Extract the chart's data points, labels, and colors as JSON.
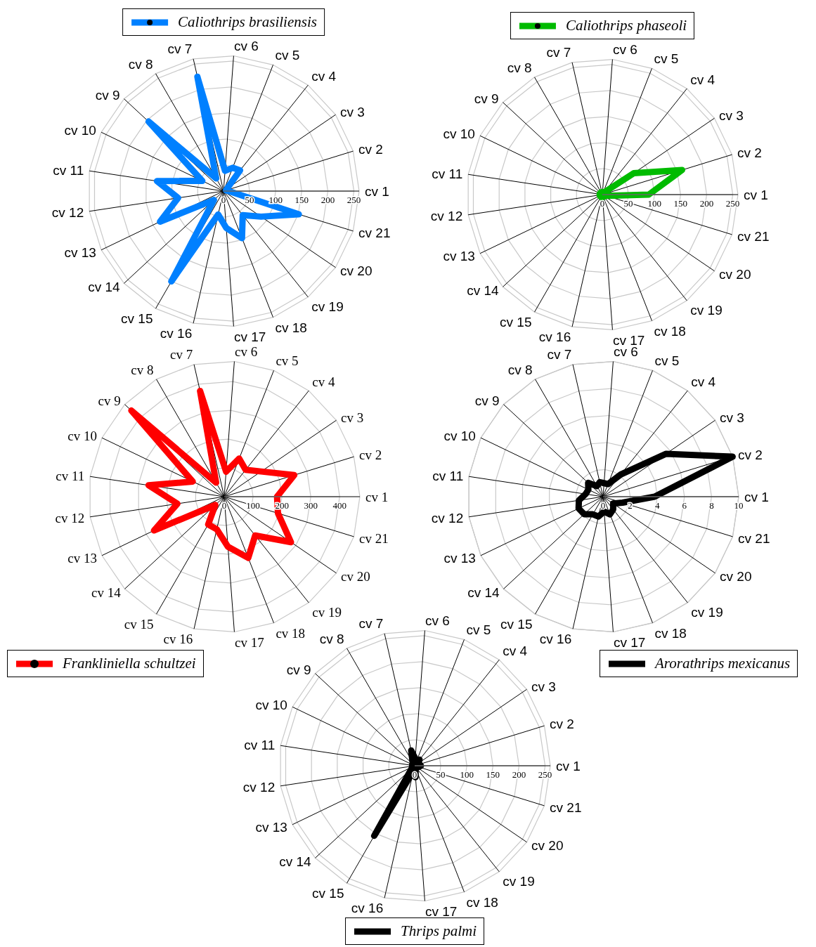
{
  "chart_data": [
    {
      "type": "radar",
      "categories": [
        "cv 6",
        "cv 5",
        "cv 4",
        "cv 3",
        "cv 2",
        "cv 1",
        "cv 21",
        "cv 20",
        "cv 19",
        "cv 18",
        "cv 17",
        "cv 16",
        "cv 15",
        "cv 14",
        "cv 13",
        "cv 12",
        "cv 11",
        "cv 10",
        "cv 9",
        "cv 8",
        "cv 7"
      ],
      "ylim": [
        0,
        260
      ],
      "yticks": [
        0,
        50,
        100,
        150,
        200,
        250
      ],
      "grid": true,
      "legend": "top",
      "marker": "circle",
      "series": [
        {
          "name": "Caliothrips brasiliensis",
          "color": "#0080ff",
          "values": [
            39,
            48,
            51,
            8,
            5,
            10,
            151,
            87,
            59,
            97,
            71,
            46,
            200,
            25,
            135,
            88,
            129,
            45,
            196,
            28,
            225
          ]
        }
      ]
    },
    {
      "type": "radar",
      "categories": [
        "cv 6",
        "cv 5",
        "cv 4",
        "cv 3",
        "cv 2",
        "cv 1",
        "cv 21",
        "cv 20",
        "cv 19",
        "cv 18",
        "cv 17",
        "cv 16",
        "cv 15",
        "cv 14",
        "cv 13",
        "cv 12",
        "cv 11",
        "cv 10",
        "cv 9",
        "cv 8",
        "cv 7"
      ],
      "ylim": [
        0,
        260
      ],
      "yticks": [
        0,
        50,
        100,
        150,
        200,
        250
      ],
      "grid": true,
      "legend": "top",
      "marker": "circle",
      "series": [
        {
          "name": "Caliothrips phaseoli",
          "color": "#00bb00",
          "values": [
            5,
            5,
            5,
            73,
            160,
            89,
            8,
            5,
            5,
            5,
            5,
            5,
            5,
            5,
            5,
            5,
            5,
            5,
            5,
            5,
            5
          ]
        }
      ]
    },
    {
      "type": "radar",
      "categories": [
        "cv 6",
        "cv 5",
        "cv 4",
        "cv 3",
        "cv 2",
        "cv 1",
        "cv 21",
        "cv 20",
        "cv 19",
        "cv 18",
        "cv 17",
        "cv 16",
        "cv 15",
        "cv 14",
        "cv 13",
        "cv 12",
        "cv 11",
        "cv 10",
        "cv 9",
        "cv 8",
        "cv 7"
      ],
      "ylim": [
        0,
        470
      ],
      "yticks": [
        0,
        100,
        200,
        300,
        400
      ],
      "grid": true,
      "legend": "bottom left",
      "marker": "circle",
      "series": [
        {
          "name": "Frankliniella schultzei",
          "color": "#ff0000",
          "values": [
            87,
            142,
            119,
            155,
            254,
            183,
            195,
            280,
            172,
            228,
            174,
            116,
            111,
            42,
            270,
            164,
            265,
            121,
            439,
            56,
            376
          ]
        }
      ]
    },
    {
      "type": "radar",
      "categories": [
        "cv 6",
        "cv 5",
        "cv 4",
        "cv 3",
        "cv 2",
        "cv 1",
        "cv 21",
        "cv 20",
        "cv 19",
        "cv 18",
        "cv 17",
        "cv 16",
        "cv 15",
        "cv 14",
        "cv 13",
        "cv 12",
        "cv 11",
        "cv 10",
        "cv 9",
        "cv 8",
        "cv 7"
      ],
      "ylim": [
        0,
        10
      ],
      "yticks": [
        0,
        2,
        4,
        6,
        8,
        10
      ],
      "grid": true,
      "legend": "bottom right",
      "marker": "none",
      "series": [
        {
          "name": "Arorathrips mexicanus",
          "color": "#000000",
          "values": [
            1.0,
            1.0,
            2.1,
            5.6,
            10,
            3.8,
            1.5,
            0.9,
            1.2,
            1.4,
            1.1,
            1.5,
            1.5,
            1.9,
            2.0,
            1.8,
            1.3,
            1.2,
            1.5,
            0.9,
            1.1
          ]
        }
      ]
    },
    {
      "type": "radar",
      "categories": [
        "cv 6",
        "cv 5",
        "cv 4",
        "cv 3",
        "cv 2",
        "cv 1",
        "cv 21",
        "cv 20",
        "cv 19",
        "cv 18",
        "cv 17",
        "cv 16",
        "cv 15",
        "cv 14",
        "cv 13",
        "cv 12",
        "cv 11",
        "cv 10",
        "cv 9",
        "cv 8",
        "cv 7"
      ],
      "ylim": [
        0,
        260
      ],
      "yticks": [
        0,
        50,
        100,
        150,
        200,
        250
      ],
      "grid": true,
      "legend": "bottom",
      "marker": "circle",
      "series": [
        {
          "name": "Thrips palmi",
          "color": "#000000",
          "values": [
            14,
            10,
            15,
            8,
            10,
            12,
            8,
            5,
            5,
            5,
            22,
            10,
            155,
            8,
            5,
            5,
            5,
            5,
            5,
            8,
            30
          ]
        }
      ]
    }
  ]
}
